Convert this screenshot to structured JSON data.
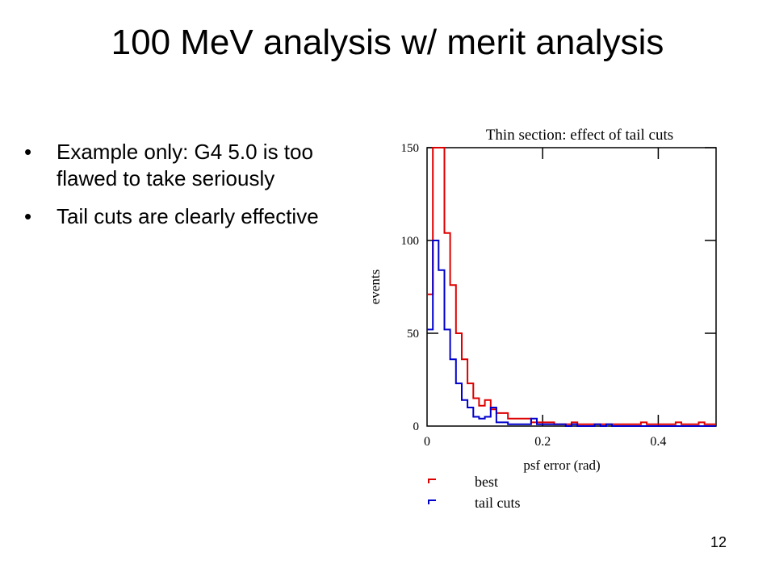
{
  "slide": {
    "title": "100 MeV analysis w/ merit analysis",
    "bullets": [
      "Example only: G4 5.0 is too flawed to take seriously",
      "Tail cuts are clearly effective"
    ],
    "bullet_glyph": "•",
    "page_number": "12"
  },
  "chart_data": {
    "type": "line",
    "subtype": "step-histogram",
    "title": "Thin section: effect of tail cuts",
    "xlabel": "psf error (rad)",
    "ylabel": "events",
    "xlim": [
      0,
      0.5
    ],
    "ylim": [
      0,
      150
    ],
    "x_ticks": [
      0,
      0.2,
      0.4
    ],
    "x_tick_labels": [
      "0",
      "0.2",
      "0.4"
    ],
    "y_ticks": [
      0,
      50,
      100,
      150
    ],
    "y_tick_labels": [
      "0",
      "50",
      "100",
      "150"
    ],
    "bin_width": 0.01,
    "legend_position": "bottom",
    "series": [
      {
        "name": "best",
        "color": "#dd0000",
        "values": [
          71,
          150,
          150,
          104,
          76,
          50,
          36,
          23,
          15,
          11,
          14,
          9,
          7,
          7,
          4,
          4,
          4,
          4,
          2,
          2,
          2,
          2,
          1,
          1,
          1,
          2,
          1,
          1,
          1,
          1,
          1,
          1,
          1,
          1,
          1,
          1,
          1,
          2,
          1,
          1,
          1,
          1,
          1,
          2,
          1,
          1,
          1,
          2,
          1,
          1
        ]
      },
      {
        "name": "tail cuts",
        "color": "#0000cc",
        "values": [
          52,
          100,
          84,
          52,
          36,
          23,
          14,
          10,
          5,
          4,
          5,
          10,
          2,
          2,
          1,
          1,
          1,
          1,
          4,
          1,
          1,
          1,
          1,
          1,
          0,
          1,
          0,
          0,
          0,
          1,
          0,
          1,
          0,
          0,
          0,
          0,
          0,
          0,
          0,
          0,
          0,
          0,
          0,
          0,
          0,
          0,
          0,
          0,
          0,
          0
        ]
      }
    ]
  }
}
